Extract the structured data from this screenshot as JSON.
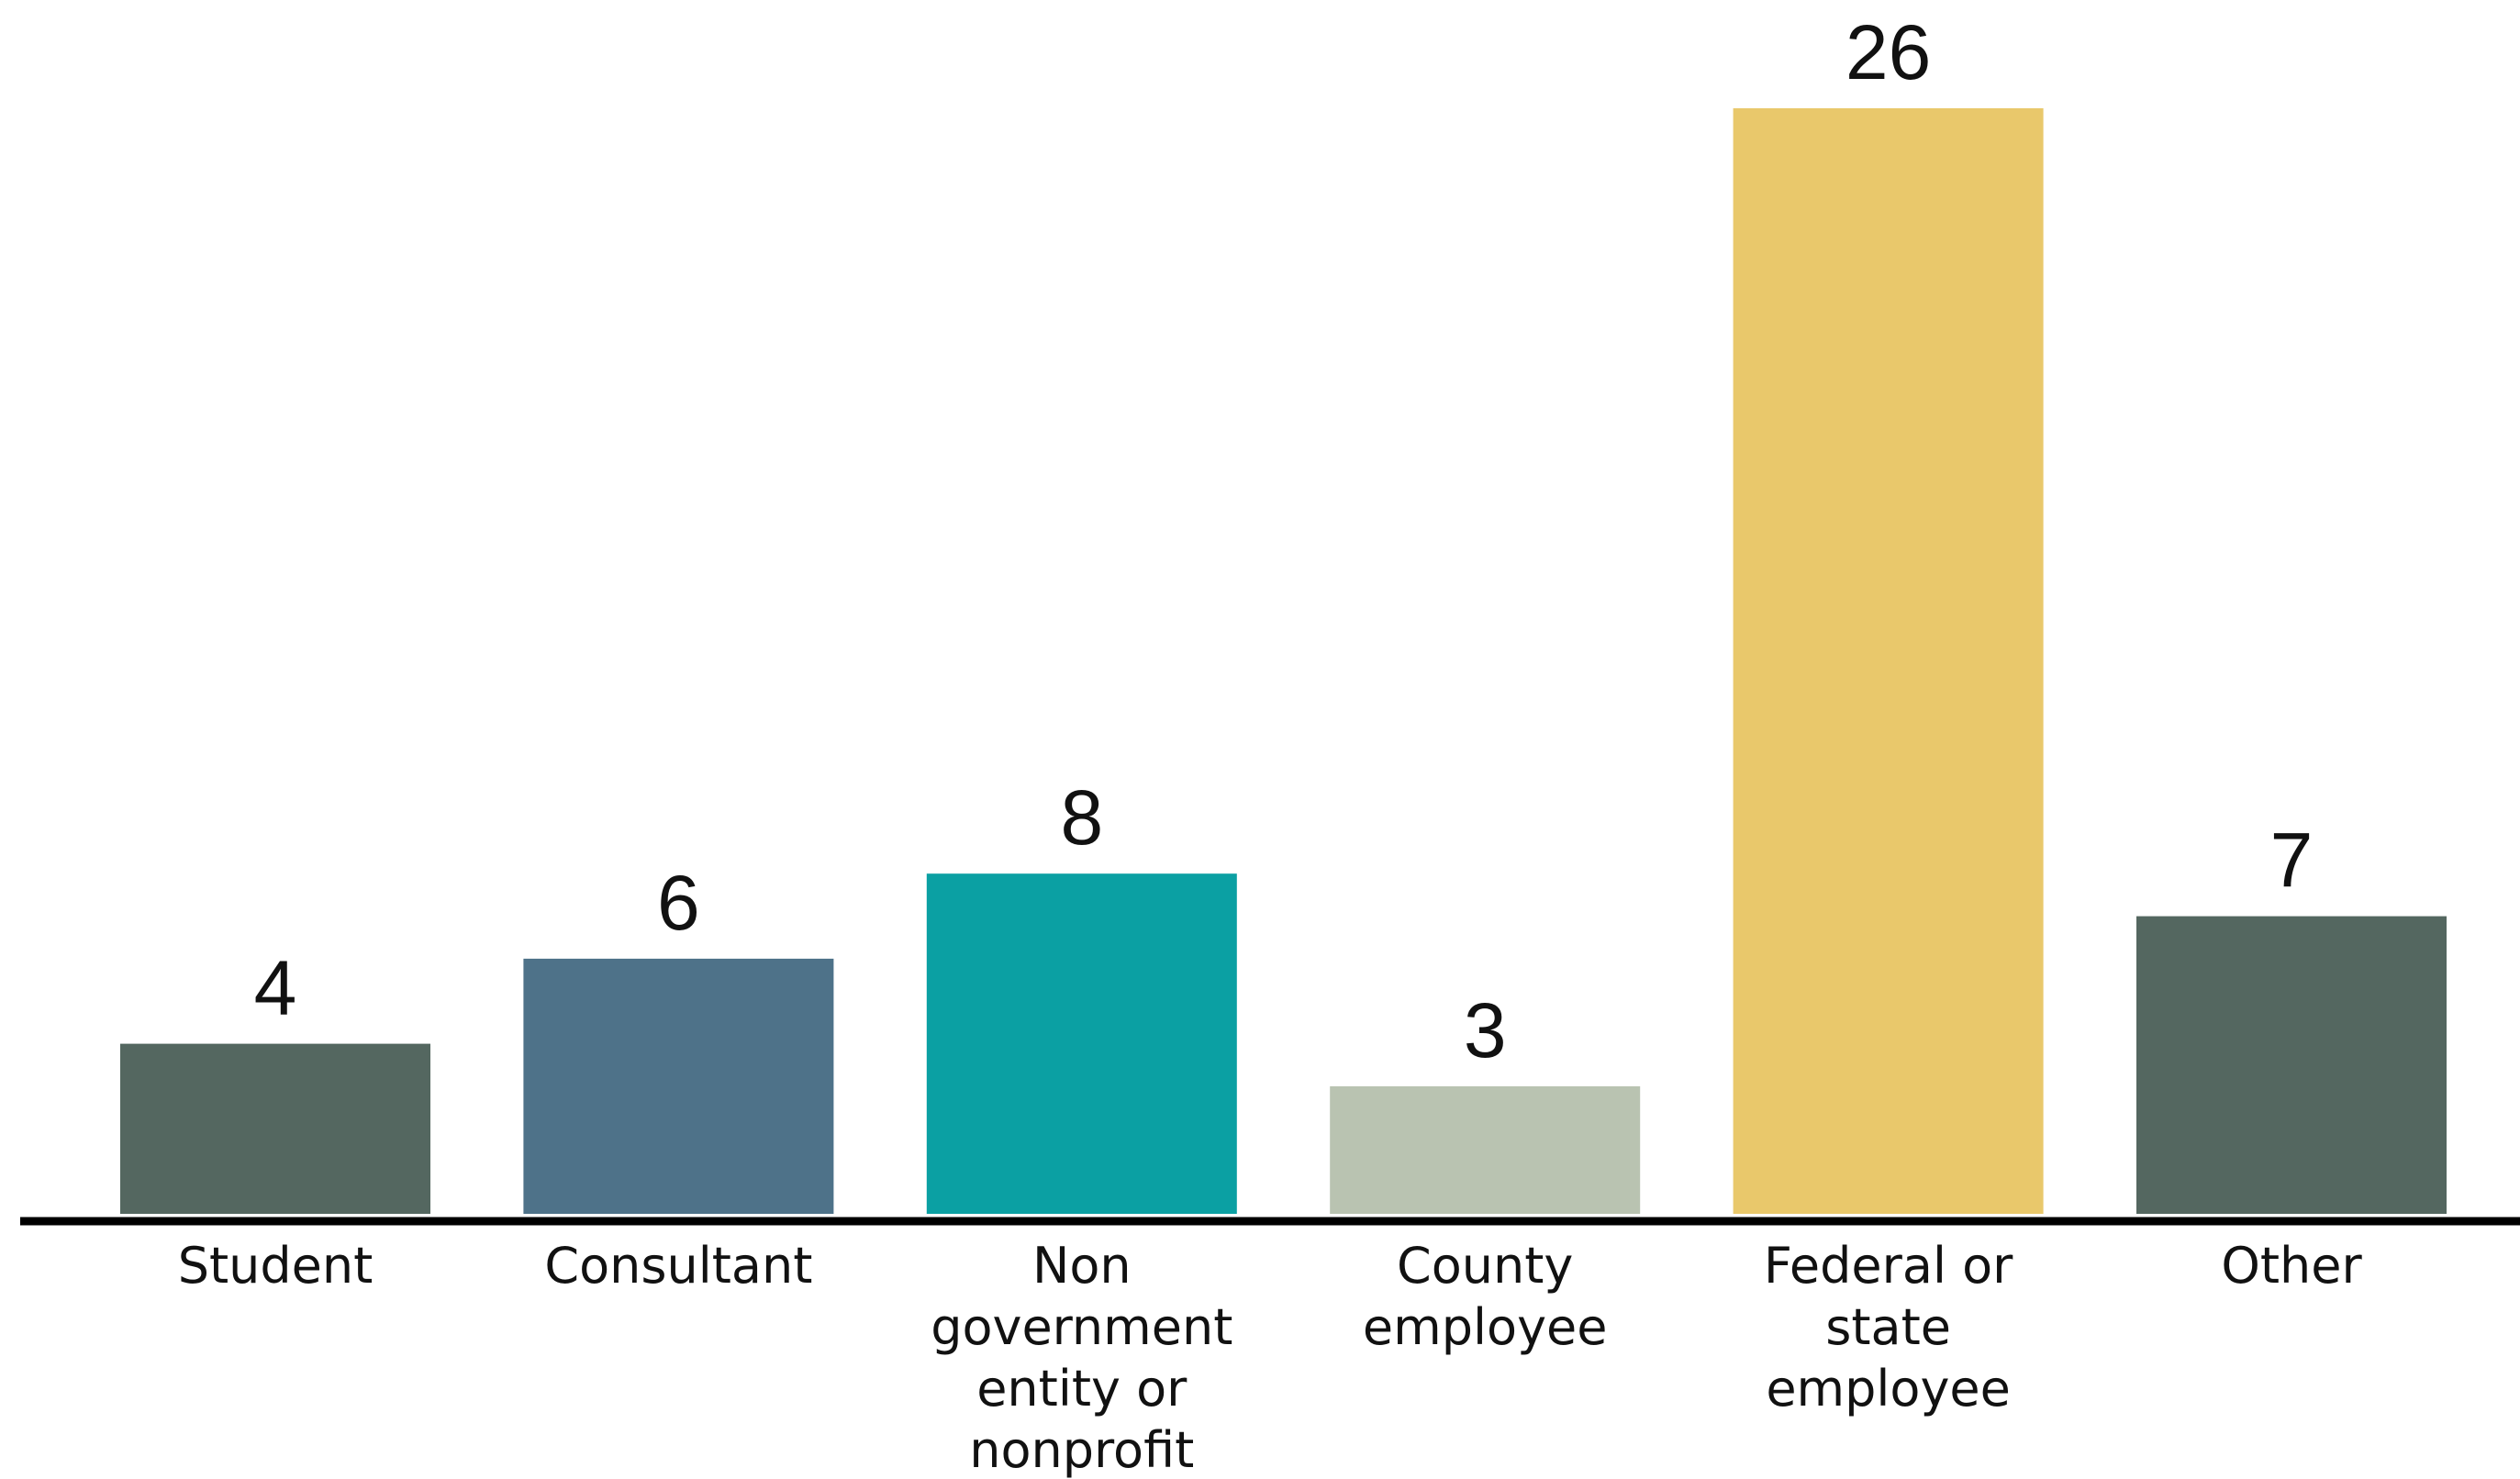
{
  "chart_data": {
    "type": "bar",
    "title": "",
    "xlabel": "",
    "ylabel": "",
    "categories": [
      [
        "Student"
      ],
      [
        "Consultant"
      ],
      [
        "Non",
        "government",
        "entity or",
        "nonprofit"
      ],
      [
        "County",
        "employee"
      ],
      [
        "Federal or",
        "state",
        "employee"
      ],
      [
        "Other"
      ]
    ],
    "values": [
      4,
      6,
      8,
      3,
      26,
      7
    ],
    "colors": [
      "#546760",
      "#4e7289",
      "#0ba0a3",
      "#b9c3b1",
      "#e9c86b",
      "#546760"
    ],
    "ylim": [
      0,
      26
    ],
    "grid": false,
    "legend": "none",
    "axis_color": "#000000"
  }
}
